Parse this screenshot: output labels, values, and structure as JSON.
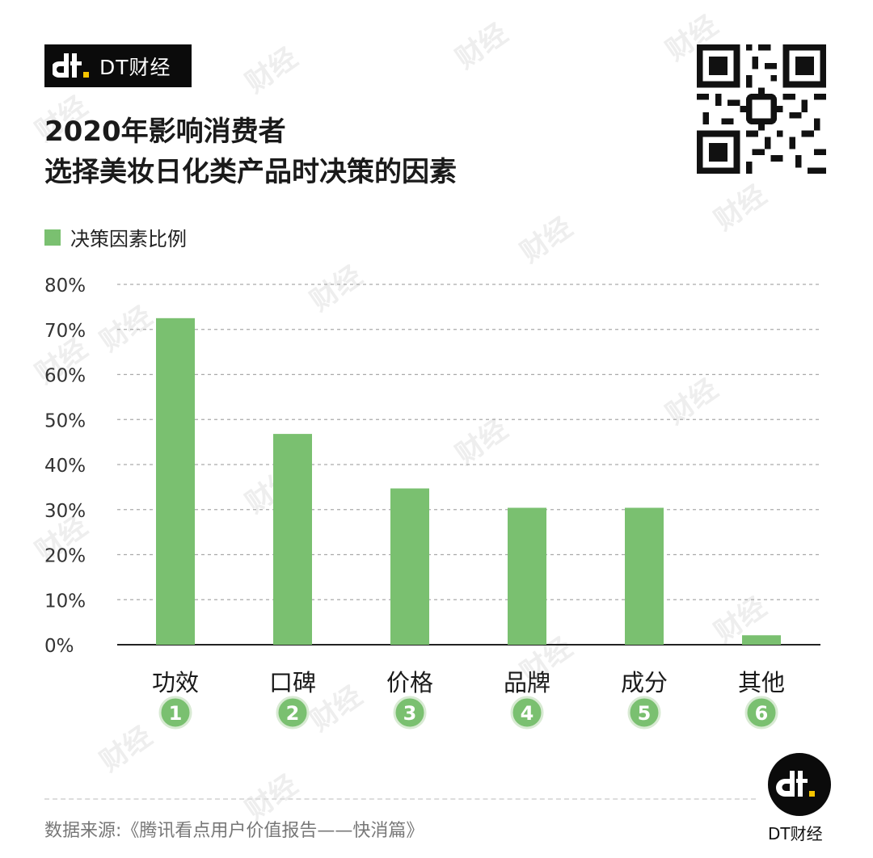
{
  "brand": {
    "name": "DT财经"
  },
  "title": {
    "line1": "2020年影响消费者",
    "line2": "选择美妆日化类产品时决策的因素"
  },
  "watermark": "财经",
  "colors": {
    "bar": "#7ac070",
    "badge_bg": "#0b0b0b",
    "brand_accent": "#f5c400"
  },
  "chart_data": {
    "type": "bar",
    "categories": [
      "功效",
      "口碑",
      "价格",
      "品牌",
      "成分",
      "其他"
    ],
    "numbers": [
      "1",
      "2",
      "3",
      "4",
      "5",
      "6"
    ],
    "series": [
      {
        "name": "决策因素比例",
        "values": [
          72.5,
          46.8,
          34.7,
          30.4,
          30.4,
          2.1
        ]
      }
    ],
    "ylim": [
      0,
      80
    ],
    "yticks": [
      "0%",
      "10%",
      "20%",
      "30%",
      "40%",
      "50%",
      "60%",
      "70%",
      "80%"
    ],
    "grid": true,
    "legend": "top-left"
  },
  "source": "数据来源:《腾讯看点用户价值报告——快消篇》",
  "footer_brand": "DT财经"
}
